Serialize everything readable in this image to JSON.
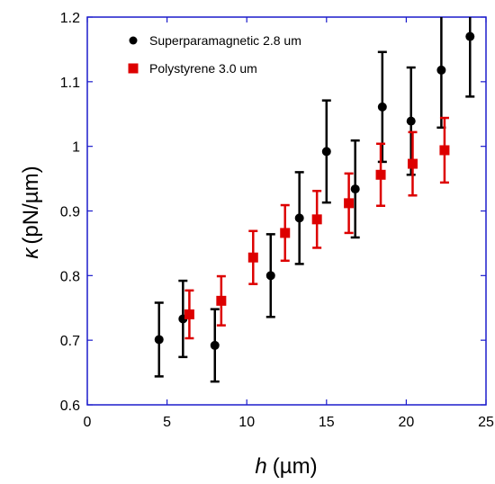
{
  "chart_data": {
    "type": "scatter",
    "xlabel_var": "h",
    "xlabel_unit": "(µm)",
    "ylabel_var": "κ",
    "ylabel_unit": "(pN/µm)",
    "xlim": [
      0,
      25
    ],
    "ylim": [
      0.6,
      1.2
    ],
    "x_ticks": [
      "0",
      "5",
      "10",
      "15",
      "20",
      "25"
    ],
    "y_ticks": [
      "0.6",
      "0.7",
      "0.8",
      "0.9",
      "1",
      "1.1",
      "1.2"
    ],
    "grid": false,
    "legend_position": "top-left",
    "series": [
      {
        "name": "Superparamagnetic 2.8 um",
        "marker": "circle",
        "color": "#000000",
        "points": [
          {
            "x": 4.5,
            "y": 0.701,
            "err": 0.057
          },
          {
            "x": 6.0,
            "y": 0.733,
            "err": 0.059
          },
          {
            "x": 8.0,
            "y": 0.692,
            "err": 0.056
          },
          {
            "x": 11.5,
            "y": 0.8,
            "err": 0.064
          },
          {
            "x": 13.3,
            "y": 0.889,
            "err": 0.071
          },
          {
            "x": 15.0,
            "y": 0.992,
            "err": 0.079
          },
          {
            "x": 16.8,
            "y": 0.934,
            "err": 0.075
          },
          {
            "x": 18.5,
            "y": 1.061,
            "err": 0.085
          },
          {
            "x": 20.3,
            "y": 1.039,
            "err": 0.083
          },
          {
            "x": 22.2,
            "y": 1.118,
            "err": 0.089
          },
          {
            "x": 24.0,
            "y": 1.17,
            "err": 0.093
          }
        ]
      },
      {
        "name": "Polystyrene 3.0 um",
        "marker": "square",
        "color": "#dd0000",
        "points": [
          {
            "x": 6.4,
            "y": 0.74,
            "err": 0.037
          },
          {
            "x": 8.4,
            "y": 0.761,
            "err": 0.038
          },
          {
            "x": 10.4,
            "y": 0.828,
            "err": 0.041
          },
          {
            "x": 12.4,
            "y": 0.866,
            "err": 0.043
          },
          {
            "x": 14.4,
            "y": 0.887,
            "err": 0.044
          },
          {
            "x": 16.4,
            "y": 0.912,
            "err": 0.046
          },
          {
            "x": 18.4,
            "y": 0.956,
            "err": 0.048
          },
          {
            "x": 20.4,
            "y": 0.973,
            "err": 0.049
          },
          {
            "x": 22.4,
            "y": 0.994,
            "err": 0.05
          }
        ]
      }
    ]
  }
}
